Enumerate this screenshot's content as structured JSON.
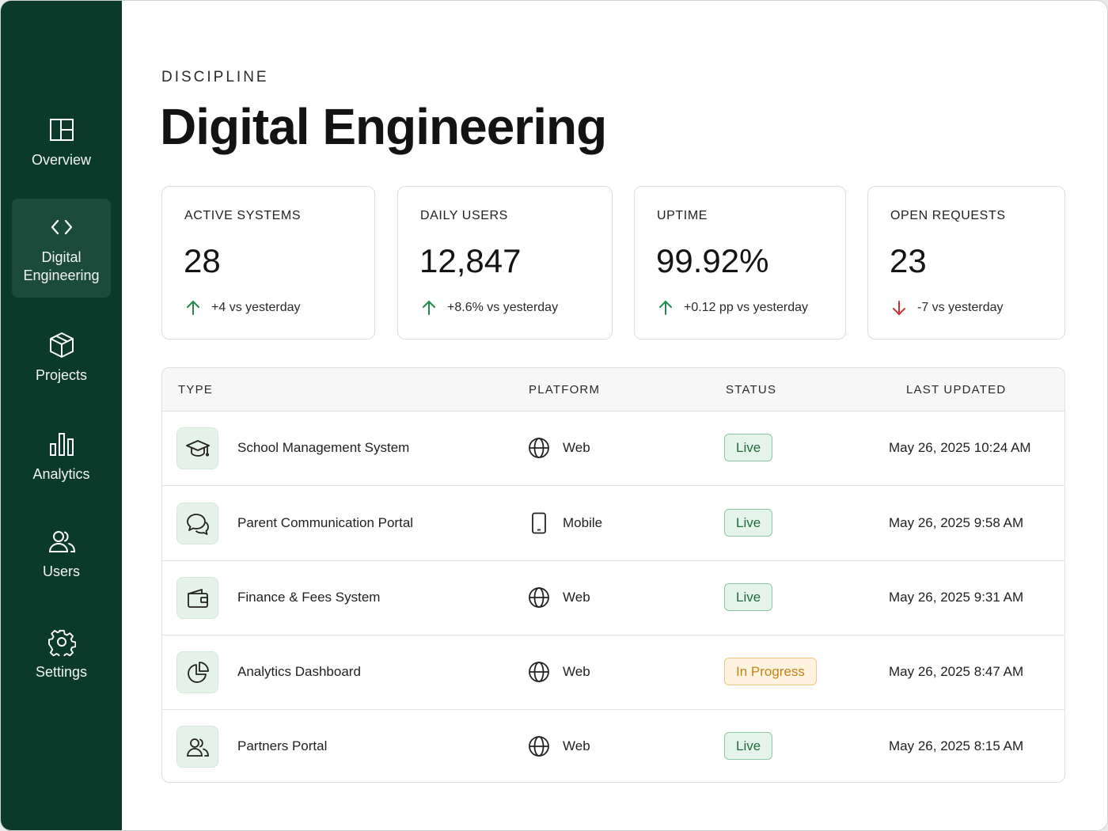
{
  "sidebar": {
    "items": [
      {
        "label": "Overview",
        "icon": "layout-icon",
        "active": false
      },
      {
        "label": "Digital\nEngineering",
        "icon": "code-icon",
        "active": true
      },
      {
        "label": "Projects",
        "icon": "box-icon",
        "active": false
      },
      {
        "label": "Analytics",
        "icon": "bar-chart-icon",
        "active": false
      },
      {
        "label": "Users",
        "icon": "users-icon",
        "active": false
      },
      {
        "label": "Settings",
        "icon": "gear-icon",
        "active": false
      }
    ]
  },
  "header": {
    "eyebrow": "DISCIPLINE",
    "title": "Digital Engineering"
  },
  "stats": [
    {
      "label": "ACTIVE SYSTEMS",
      "value": "28",
      "delta": "+4 vs yesterday",
      "trend": "up"
    },
    {
      "label": "DAILY USERS",
      "value": "12,847",
      "delta": "+8.6% vs yesterday",
      "trend": "up"
    },
    {
      "label": "UPTIME",
      "value": "99.92%",
      "delta": "+0.12 pp vs yesterday",
      "trend": "up"
    },
    {
      "label": "OPEN REQUESTS",
      "value": "23",
      "delta": "-7 vs yesterday",
      "trend": "down"
    }
  ],
  "table": {
    "columns": [
      "TYPE",
      "PLATFORM",
      "STATUS",
      "LAST UPDATED"
    ],
    "rows": [
      {
        "name": "School Management System",
        "icon": "graduation-cap-icon",
        "platform": "Web",
        "platform_icon": "globe-icon",
        "status": "Live",
        "updated": "May 26, 2025 10:24 AM"
      },
      {
        "name": "Parent Communication Portal",
        "icon": "chat-bubbles-icon",
        "platform": "Mobile",
        "platform_icon": "mobile-icon",
        "status": "Live",
        "updated": "May 26, 2025 9:58 AM"
      },
      {
        "name": "Finance & Fees System",
        "icon": "wallet-icon",
        "platform": "Web",
        "platform_icon": "globe-icon",
        "status": "Live",
        "updated": "May 26, 2025 9:31 AM"
      },
      {
        "name": "Analytics Dashboard",
        "icon": "pie-chart-icon",
        "platform": "Web",
        "platform_icon": "globe-icon",
        "status": "In Progress",
        "updated": "May 26, 2025 8:47 AM"
      },
      {
        "name": "Partners Portal",
        "icon": "users-icon",
        "platform": "Web",
        "platform_icon": "globe-icon",
        "status": "Live",
        "updated": "May 26, 2025 8:15 AM"
      }
    ]
  },
  "colors": {
    "sidebar_bg": "#0b3a2a",
    "sidebar_active": "#1c4b3b",
    "trend_up": "#1f8a4c",
    "trend_down": "#d32f2f",
    "live": "#1f6b3e",
    "in_progress": "#c98214"
  }
}
